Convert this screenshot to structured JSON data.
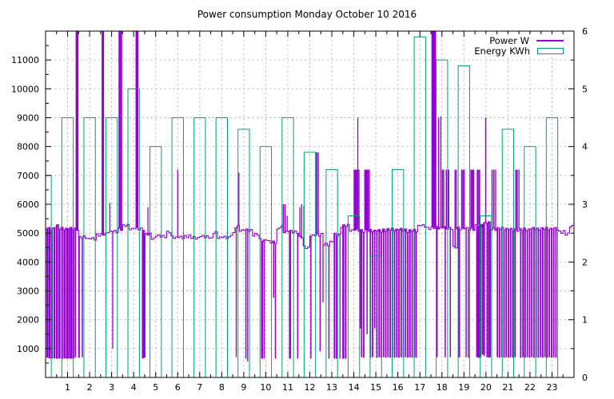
{
  "title": "Power consumption Monday October 10 2016",
  "legend": {
    "entries": [
      {
        "label": "Power W",
        "color": "#9400d3",
        "sample": "line"
      },
      {
        "label": "Energy KWh",
        "color": "#009e73",
        "sample": "box"
      }
    ],
    "position": "top-right-inside"
  },
  "colors": {
    "power": "#9400d3",
    "energy": "#009e73",
    "grid": "#b0b0b0",
    "axis": "#000000",
    "background": "#ffffff"
  },
  "axes": {
    "x": {
      "range": [
        0,
        24
      ],
      "tick_labels": [
        1,
        2,
        3,
        4,
        5,
        6,
        7,
        8,
        9,
        10,
        11,
        12,
        13,
        14,
        15,
        16,
        17,
        18,
        19,
        20,
        21,
        22,
        23
      ],
      "minor_step": 0.5
    },
    "y_left": {
      "unit": "W",
      "range": [
        0,
        12000
      ],
      "tick_labels": [
        1000,
        2000,
        3000,
        4000,
        5000,
        6000,
        7000,
        8000,
        9000,
        10000,
        11000
      ],
      "minor_step": 500
    },
    "y_right": {
      "unit": "KWh",
      "range": [
        0,
        6
      ],
      "tick_labels": [
        0,
        1,
        2,
        3,
        4,
        5,
        6
      ],
      "minor_step": 0.5
    }
  },
  "chart_data": {
    "type": "combo",
    "title": "Power consumption Monday October 10 2016",
    "x_unit": "hour of day",
    "grid": true,
    "legend_position": "top-right-inside",
    "series": [
      {
        "name": "Power W",
        "type": "line",
        "style": "step-baseline-with-impulse-spikes",
        "axis": "y_left",
        "unit": "W",
        "baseline_steps": [
          [
            0,
            5150
          ],
          [
            0.35,
            5250
          ],
          [
            0.6,
            5150
          ],
          [
            1.5,
            4850
          ],
          [
            1.9,
            4800
          ],
          [
            2.3,
            4950
          ],
          [
            2.75,
            5050
          ],
          [
            3.3,
            5150
          ],
          [
            3.5,
            5250
          ],
          [
            3.8,
            5150
          ],
          [
            4.5,
            4950
          ],
          [
            4.75,
            4820
          ],
          [
            5.0,
            4900
          ],
          [
            5.45,
            5030
          ],
          [
            5.7,
            4850
          ],
          [
            6.25,
            4900
          ],
          [
            6.6,
            4830
          ],
          [
            7.0,
            4880
          ],
          [
            7.45,
            4800
          ],
          [
            7.6,
            5000
          ],
          [
            7.8,
            4850
          ],
          [
            8.35,
            4980
          ],
          [
            8.55,
            5200
          ],
          [
            8.8,
            5100
          ],
          [
            9.4,
            4950
          ],
          [
            9.7,
            4750
          ],
          [
            10.05,
            4700
          ],
          [
            10.45,
            5100
          ],
          [
            10.55,
            5200
          ],
          [
            10.75,
            5050
          ],
          [
            11.5,
            4850
          ],
          [
            11.65,
            4500
          ],
          [
            12.0,
            4900
          ],
          [
            12.2,
            4950
          ],
          [
            12.55,
            4600
          ],
          [
            12.9,
            4700
          ],
          [
            13.05,
            4950
          ],
          [
            13.4,
            5250
          ],
          [
            13.75,
            5100
          ],
          [
            14.35,
            5080
          ],
          [
            15.3,
            5120
          ],
          [
            16.4,
            5080
          ],
          [
            16.9,
            5250
          ],
          [
            17.3,
            5180
          ],
          [
            18.45,
            4500
          ],
          [
            18.65,
            5150
          ],
          [
            19.5,
            5250
          ],
          [
            19.85,
            5350
          ],
          [
            20.15,
            5150
          ],
          [
            21.0,
            5120
          ],
          [
            22.0,
            5150
          ],
          [
            23.3,
            5050
          ],
          [
            23.6,
            4950
          ],
          [
            23.8,
            5250
          ],
          [
            23.95,
            5400
          ]
        ],
        "spikes": [
          [
            0.08,
            680,
            2.5
          ],
          [
            0.18,
            660,
            2.5
          ],
          [
            0.28,
            650,
            2.5
          ],
          [
            0.4,
            660,
            2.5
          ],
          [
            0.52,
            650,
            2.5
          ],
          [
            0.63,
            660,
            2.5
          ],
          [
            0.75,
            650,
            2.5
          ],
          [
            0.86,
            660,
            2.5
          ],
          [
            0.97,
            650,
            2.5
          ],
          [
            1.07,
            660,
            2.5
          ],
          [
            1.17,
            650,
            2.5
          ],
          [
            1.27,
            660,
            2.5
          ],
          [
            1.36,
            700,
            1.5
          ],
          [
            1.43,
            12000,
            3.5
          ],
          [
            1.52,
            680,
            2
          ],
          [
            1.67,
            700,
            1.5
          ],
          [
            2.6,
            12000,
            3
          ],
          [
            2.92,
            6050,
            1.3
          ],
          [
            3.05,
            1000,
            1.3
          ],
          [
            3.36,
            12000,
            2.5
          ],
          [
            3.44,
            12000,
            2
          ],
          [
            4.15,
            12000,
            3.5
          ],
          [
            4.42,
            660,
            2.5
          ],
          [
            4.5,
            680,
            2
          ],
          [
            4.65,
            5900,
            1.3
          ],
          [
            6.0,
            7200,
            1.3
          ],
          [
            8.66,
            700,
            1.3
          ],
          [
            8.78,
            7100,
            1.3
          ],
          [
            9.1,
            650,
            1.5
          ],
          [
            9.18,
            550,
            1.3
          ],
          [
            9.83,
            650,
            2.5
          ],
          [
            9.93,
            660,
            1.5
          ],
          [
            10.36,
            2760,
            1.5
          ],
          [
            10.44,
            650,
            1.5
          ],
          [
            10.8,
            6000,
            1.5
          ],
          [
            10.88,
            6000,
            1.5
          ],
          [
            10.97,
            5600,
            1.3
          ],
          [
            11.1,
            650,
            2.5
          ],
          [
            11.45,
            650,
            1.5
          ],
          [
            11.55,
            5900,
            1.3
          ],
          [
            11.63,
            6000,
            1.3
          ],
          [
            11.73,
            5950,
            1.3
          ],
          [
            12.05,
            650,
            1.5
          ],
          [
            12.3,
            7800,
            2
          ],
          [
            12.38,
            7800,
            1.5
          ],
          [
            12.47,
            900,
            1.5
          ],
          [
            12.6,
            2600,
            1.3
          ],
          [
            12.87,
            650,
            1.5
          ],
          [
            13.12,
            660,
            2
          ],
          [
            13.22,
            650,
            2
          ],
          [
            13.37,
            650,
            1.3
          ],
          [
            13.52,
            650,
            2.5
          ],
          [
            13.63,
            650,
            2
          ],
          [
            14.02,
            7200,
            1.5
          ],
          [
            14.07,
            7200,
            2
          ],
          [
            14.12,
            7200,
            2
          ],
          [
            14.18,
            9000,
            1.3
          ],
          [
            14.23,
            7200,
            1.5
          ],
          [
            14.3,
            1700,
            1.5
          ],
          [
            14.35,
            700,
            1.5
          ],
          [
            14.45,
            680,
            1.8
          ],
          [
            14.5,
            7200,
            1.5
          ],
          [
            14.56,
            7200,
            2
          ],
          [
            14.6,
            1500,
            1.5
          ],
          [
            14.63,
            7200,
            2
          ],
          [
            14.7,
            7200,
            1.5
          ],
          [
            14.75,
            680,
            1.8
          ],
          [
            14.85,
            700,
            1.8
          ],
          [
            14.95,
            1700,
            1.5
          ],
          [
            15.05,
            680,
            1.8
          ],
          [
            15.15,
            700,
            1.8
          ],
          [
            15.25,
            680,
            1.8
          ],
          [
            15.35,
            700,
            1.8
          ],
          [
            15.45,
            680,
            1.8
          ],
          [
            15.55,
            700,
            1.8
          ],
          [
            15.65,
            680,
            1.8
          ],
          [
            15.75,
            700,
            1.8
          ],
          [
            15.85,
            680,
            1.8
          ],
          [
            15.95,
            700,
            1.8
          ],
          [
            16.05,
            680,
            1.8
          ],
          [
            16.15,
            700,
            1.8
          ],
          [
            16.25,
            680,
            1.8
          ],
          [
            16.35,
            700,
            1.8
          ],
          [
            16.45,
            680,
            1.8
          ],
          [
            16.55,
            700,
            1.8
          ],
          [
            16.65,
            680,
            1.8
          ],
          [
            16.75,
            700,
            1.8
          ],
          [
            16.83,
            680,
            1.8
          ],
          [
            17.58,
            12000,
            3
          ],
          [
            17.68,
            12000,
            3
          ],
          [
            17.78,
            700,
            1.5
          ],
          [
            17.85,
            9000,
            1.5
          ],
          [
            17.95,
            9050,
            1.3
          ],
          [
            18.02,
            7200,
            1.5
          ],
          [
            18.08,
            7200,
            1.5
          ],
          [
            18.15,
            700,
            1.5
          ],
          [
            18.2,
            7200,
            1.5
          ],
          [
            18.3,
            7200,
            2
          ],
          [
            18.38,
            700,
            1.5
          ],
          [
            18.6,
            7200,
            1.5
          ],
          [
            18.66,
            7200,
            1.3
          ],
          [
            18.75,
            700,
            1.5
          ],
          [
            18.8,
            700,
            1.5
          ],
          [
            18.9,
            7200,
            1.5
          ],
          [
            18.96,
            7200,
            1.5
          ],
          [
            19.02,
            7200,
            1.3
          ],
          [
            19.1,
            700,
            1.5
          ],
          [
            19.2,
            680,
            1.5
          ],
          [
            19.32,
            7200,
            1.5
          ],
          [
            19.38,
            7200,
            2
          ],
          [
            19.44,
            7200,
            1.5
          ],
          [
            19.6,
            700,
            2.5
          ],
          [
            19.62,
            7200,
            2
          ],
          [
            19.68,
            680,
            2.5
          ],
          [
            19.7,
            7200,
            2
          ],
          [
            19.76,
            700,
            2
          ],
          [
            19.85,
            800,
            2
          ],
          [
            19.92,
            750,
            2
          ],
          [
            19.99,
            9000,
            1.5
          ],
          [
            20.06,
            700,
            2
          ],
          [
            20.14,
            680,
            2
          ],
          [
            20.2,
            700,
            1.5
          ],
          [
            20.28,
            7200,
            1.5
          ],
          [
            20.36,
            7200,
            1.5
          ],
          [
            20.44,
            7200,
            1.3
          ],
          [
            20.52,
            700,
            1.8
          ],
          [
            20.62,
            680,
            1.8
          ],
          [
            20.72,
            700,
            1.8
          ],
          [
            20.82,
            680,
            1.8
          ],
          [
            20.92,
            700,
            1.8
          ],
          [
            21.02,
            680,
            1.8
          ],
          [
            21.12,
            700,
            1.8
          ],
          [
            21.22,
            680,
            1.8
          ],
          [
            21.32,
            700,
            1.8
          ],
          [
            21.36,
            7200,
            1.5
          ],
          [
            21.42,
            7200,
            1.5
          ],
          [
            21.5,
            7200,
            1.3
          ],
          [
            21.58,
            680,
            1.8
          ],
          [
            21.68,
            700,
            1.8
          ],
          [
            21.78,
            680,
            1.8
          ],
          [
            21.88,
            700,
            1.8
          ],
          [
            21.98,
            680,
            1.8
          ],
          [
            22.08,
            700,
            1.8
          ],
          [
            22.18,
            680,
            1.8
          ],
          [
            22.28,
            700,
            1.8
          ],
          [
            22.38,
            680,
            1.8
          ],
          [
            22.48,
            700,
            1.8
          ],
          [
            22.58,
            680,
            1.8
          ],
          [
            22.68,
            700,
            1.8
          ],
          [
            22.78,
            680,
            1.8
          ],
          [
            22.88,
            700,
            1.8
          ],
          [
            22.98,
            680,
            1.8
          ],
          [
            23.08,
            700,
            1.8
          ],
          [
            23.18,
            680,
            1.8
          ]
        ]
      },
      {
        "name": "Energy KWh",
        "type": "bar",
        "axis": "y_right",
        "unit": "KWh",
        "bar_width_hours": 0.52,
        "categories": [
          0,
          1,
          2,
          3,
          4,
          5,
          6,
          7,
          8,
          9,
          10,
          11,
          12,
          13,
          14,
          15,
          16,
          17,
          18,
          19,
          20,
          21,
          22,
          23
        ],
        "values": [
          3.5,
          4.5,
          4.5,
          4.5,
          5.0,
          4.0,
          4.5,
          4.5,
          4.5,
          4.3,
          4.0,
          4.5,
          3.9,
          3.6,
          2.8,
          2.1,
          3.6,
          5.9,
          5.5,
          5.4,
          2.8,
          4.3,
          4.0,
          4.5
        ]
      }
    ]
  }
}
